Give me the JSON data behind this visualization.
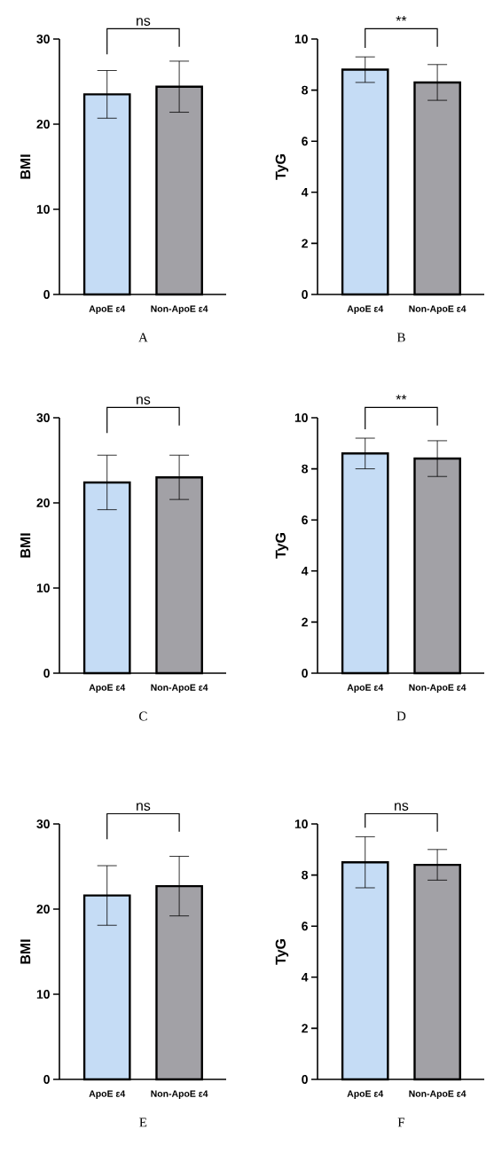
{
  "chart_data": [
    {
      "type": "bar",
      "categories": [
        "ApoE ε4",
        "Non-ApoE ε4"
      ],
      "values": [
        23.5,
        24.4
      ],
      "colors": [
        "#c5dcf5",
        "#a2a1a6"
      ],
      "errors": [
        2.8,
        3.0
      ],
      "ylabel": "BMI",
      "ylim": [
        0,
        30
      ],
      "yticks": [
        0,
        10,
        20,
        30
      ],
      "annotations": [
        "ns",
        "A"
      ]
    },
    {
      "type": "bar",
      "categories": [
        "ApoE ε4",
        "Non-ApoE ε4"
      ],
      "values": [
        8.8,
        8.3
      ],
      "colors": [
        "#c5dcf5",
        "#a2a1a6"
      ],
      "errors": [
        0.5,
        0.7
      ],
      "ylabel": "TyG",
      "ylim": [
        0,
        10
      ],
      "yticks": [
        0,
        2,
        4,
        6,
        8,
        10
      ],
      "annotations": [
        "**",
        "B"
      ]
    },
    {
      "type": "bar",
      "categories": [
        "ApoE ε4",
        "Non-ApoE ε4"
      ],
      "values": [
        22.4,
        23.0
      ],
      "colors": [
        "#c5dcf5",
        "#a2a1a6"
      ],
      "errors": [
        3.2,
        2.6
      ],
      "ylabel": "BMI",
      "ylim": [
        0,
        30
      ],
      "yticks": [
        0,
        10,
        20,
        30
      ],
      "annotations": [
        "ns",
        "C"
      ]
    },
    {
      "type": "bar",
      "categories": [
        "ApoE ε4",
        "Non-ApoE ε4"
      ],
      "values": [
        8.6,
        8.4
      ],
      "colors": [
        "#c5dcf5",
        "#a2a1a6"
      ],
      "errors": [
        0.6,
        0.7
      ],
      "ylabel": "TyG",
      "ylim": [
        0,
        10
      ],
      "yticks": [
        0,
        2,
        4,
        6,
        8,
        10
      ],
      "annotations": [
        "**",
        "D"
      ]
    },
    {
      "type": "bar",
      "categories": [
        "ApoE ε4",
        "Non-ApoE ε4"
      ],
      "values": [
        21.6,
        22.7
      ],
      "colors": [
        "#c5dcf5",
        "#a2a1a6"
      ],
      "errors": [
        3.5,
        3.5
      ],
      "ylabel": "BMI",
      "ylim": [
        0,
        30
      ],
      "yticks": [
        0,
        10,
        20,
        30
      ],
      "annotations": [
        "ns",
        "E"
      ]
    },
    {
      "type": "bar",
      "categories": [
        "ApoE ε4",
        "Non-ApoE ε4"
      ],
      "values": [
        8.5,
        8.4
      ],
      "colors": [
        "#c5dcf5",
        "#a2a1a6"
      ],
      "errors": [
        1.0,
        0.6
      ],
      "ylabel": "TyG",
      "ylim": [
        0,
        10
      ],
      "yticks": [
        0,
        2,
        4,
        6,
        8,
        10
      ],
      "annotations": [
        "ns",
        "F"
      ]
    }
  ]
}
